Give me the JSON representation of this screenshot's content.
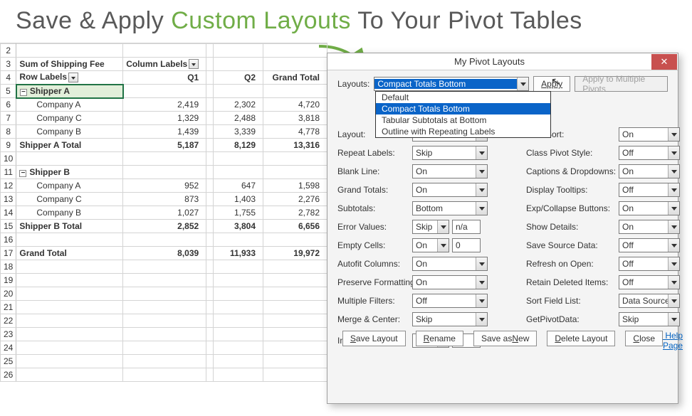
{
  "headline": {
    "p1": "Save & Apply ",
    "p2": "Custom Layouts",
    "p3": " To Your Pivot Tables"
  },
  "rows": [
    {
      "n": "2",
      "cells": [
        "",
        "",
        "",
        "",
        ""
      ]
    },
    {
      "n": "3",
      "cells": [
        "Sum of Shipping Fee",
        "Column Labels",
        "",
        "",
        ""
      ],
      "bold": true,
      "dropcol": 1
    },
    {
      "n": "4",
      "cells": [
        "Row Labels",
        "Q1",
        "",
        "Q2",
        "Grand Total"
      ],
      "bold": true,
      "dropcol": 0
    },
    {
      "n": "5",
      "cells": [
        "Shipper A",
        "",
        "",
        "",
        ""
      ],
      "bold": true,
      "sel": true,
      "exp": true
    },
    {
      "n": "6",
      "cells": [
        "Company A",
        "2,419",
        "",
        "2,302",
        "4,720"
      ],
      "indent": true
    },
    {
      "n": "7",
      "cells": [
        "Company C",
        "1,329",
        "",
        "2,488",
        "3,818"
      ],
      "indent": true
    },
    {
      "n": "8",
      "cells": [
        "Company B",
        "1,439",
        "",
        "3,339",
        "4,778"
      ],
      "indent": true
    },
    {
      "n": "9",
      "cells": [
        "Shipper A Total",
        "5,187",
        "",
        "8,129",
        "13,316"
      ],
      "bold": true
    },
    {
      "n": "10",
      "cells": [
        "",
        "",
        "",
        "",
        ""
      ]
    },
    {
      "n": "11",
      "cells": [
        "Shipper B",
        "",
        "",
        "",
        ""
      ],
      "bold": true,
      "exp": true
    },
    {
      "n": "12",
      "cells": [
        "Company A",
        "952",
        "",
        "647",
        "1,598"
      ],
      "indent": true
    },
    {
      "n": "13",
      "cells": [
        "Company C",
        "873",
        "",
        "1,403",
        "2,276"
      ],
      "indent": true
    },
    {
      "n": "14",
      "cells": [
        "Company B",
        "1,027",
        "",
        "1,755",
        "2,782"
      ],
      "indent": true
    },
    {
      "n": "15",
      "cells": [
        "Shipper B Total",
        "2,852",
        "",
        "3,804",
        "6,656"
      ],
      "bold": true
    },
    {
      "n": "16",
      "cells": [
        "",
        "",
        "",
        "",
        ""
      ]
    },
    {
      "n": "17",
      "cells": [
        "Grand Total",
        "8,039",
        "",
        "11,933",
        "19,972"
      ],
      "bold": true
    },
    {
      "n": "18",
      "cells": [
        "",
        "",
        "",
        "",
        ""
      ]
    },
    {
      "n": "19",
      "cells": [
        "",
        "",
        "",
        "",
        ""
      ]
    },
    {
      "n": "20",
      "cells": [
        "",
        "",
        "",
        "",
        ""
      ]
    },
    {
      "n": "21",
      "cells": [
        "",
        "",
        "",
        "",
        ""
      ]
    },
    {
      "n": "22",
      "cells": [
        "",
        "",
        "",
        "",
        ""
      ]
    },
    {
      "n": "23",
      "cells": [
        "",
        "",
        "",
        "",
        ""
      ]
    },
    {
      "n": "24",
      "cells": [
        "",
        "",
        "",
        "",
        ""
      ]
    },
    {
      "n": "25",
      "cells": [
        "",
        "",
        "",
        "",
        ""
      ]
    },
    {
      "n": "26",
      "cells": [
        "",
        "",
        "",
        "",
        ""
      ]
    }
  ],
  "dialog": {
    "title": "My Pivot Layouts",
    "layouts_label": "Layouts:",
    "selected_layout": "Compact Totals Bottom",
    "apply": "Apply",
    "apply_multi": "Apply to Multiple Pivots",
    "dropdown": [
      "Default",
      "Compact Totals Bottom",
      "Tabular Subtotals at Bottom",
      "Outline with Repeating Labels"
    ],
    "left": [
      {
        "label": "Layout:",
        "value": ""
      },
      {
        "label": "Repeat Labels:",
        "value": "Skip"
      },
      {
        "label": "Blank Line:",
        "value": "On"
      },
      {
        "label": "Grand Totals:",
        "value": "On"
      },
      {
        "label": "Subtotals:",
        "value": "Bottom"
      },
      {
        "label": "Error Values:",
        "value": "Skip",
        "extra": "n/a",
        "small": true
      },
      {
        "label": "Empty Cells:",
        "value": "On",
        "extra": "0",
        "small": true
      },
      {
        "label": "Autofit Columns:",
        "value": "On"
      },
      {
        "label": "Preserve Formatting:",
        "value": "On"
      },
      {
        "label": "Multiple Filters:",
        "value": "Off"
      },
      {
        "label": "Merge & Center:",
        "value": "Skip"
      },
      {
        "label": "Indent Amount:",
        "value": "On",
        "extra": "1",
        "small": true
      }
    ],
    "right": [
      {
        "label": "Lists Sort:",
        "value": "On"
      },
      {
        "label": "Class Pivot Style:",
        "value": "Off"
      },
      {
        "label": "Captions & Dropdowns:",
        "value": "On"
      },
      {
        "label": "Display Tooltips:",
        "value": "Off"
      },
      {
        "label": "Exp/Collapse Buttons:",
        "value": "On"
      },
      {
        "label": "Show Details:",
        "value": "On"
      },
      {
        "label": "Save Source Data:",
        "value": "Off"
      },
      {
        "label": "Refresh on Open:",
        "value": "Off"
      },
      {
        "label": "Retain Deleted Items:",
        "value": "Off"
      },
      {
        "label": "Sort Field List:",
        "value": "Data Source"
      },
      {
        "label": "GetPivotData:",
        "value": "Skip"
      }
    ],
    "help_link": "Online Help Page",
    "buttons": [
      "Save Layout",
      "Rename",
      "Save as New",
      "Delete Layout",
      "Close"
    ],
    "underline": [
      "S",
      "R",
      "N",
      "D",
      "C"
    ]
  }
}
